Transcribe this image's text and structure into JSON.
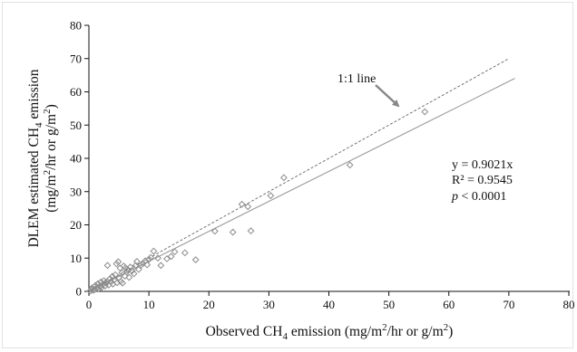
{
  "chart_data": {
    "type": "scatter",
    "xlabel": "Observed CH4 emission (mg/m2/hr or g/m2)",
    "ylabel": "DLEM estimated CH4 emission (mg/m2/hr or g/m2)",
    "xlim": [
      0,
      80
    ],
    "ylim": [
      0,
      80
    ],
    "x_ticks": [
      0,
      10,
      20,
      30,
      40,
      50,
      60,
      70,
      80
    ],
    "y_ticks": [
      0,
      10,
      20,
      30,
      40,
      50,
      60,
      70,
      80
    ],
    "grid": false,
    "marker": "diamond-open",
    "series": [
      {
        "points": [
          [
            0.2,
            0.1
          ],
          [
            0.4,
            0.5
          ],
          [
            0.5,
            1.0
          ],
          [
            0.7,
            0.3
          ],
          [
            0.9,
            1.4
          ],
          [
            1.0,
            0.6
          ],
          [
            1.1,
            1.8
          ],
          [
            1.3,
            1.0
          ],
          [
            1.5,
            2.3
          ],
          [
            1.6,
            0.8
          ],
          [
            1.8,
            1.5
          ],
          [
            2.0,
            2.8
          ],
          [
            2.1,
            1.2
          ],
          [
            2.3,
            2.0
          ],
          [
            2.5,
            3.2
          ],
          [
            2.7,
            1.6
          ],
          [
            2.9,
            2.5
          ],
          [
            3.0,
            3.0
          ],
          [
            3.1,
            7.8
          ],
          [
            3.3,
            1.9
          ],
          [
            3.5,
            3.8
          ],
          [
            3.7,
            2.9
          ],
          [
            3.9,
            4.5
          ],
          [
            4.0,
            2.2
          ],
          [
            4.2,
            3.4
          ],
          [
            4.4,
            5.0
          ],
          [
            4.6,
            8.3
          ],
          [
            4.7,
            2.6
          ],
          [
            4.9,
            8.9
          ],
          [
            5.0,
            4.1
          ],
          [
            5.2,
            7.0
          ],
          [
            5.3,
            3.0
          ],
          [
            5.5,
            5.6
          ],
          [
            5.6,
            2.5
          ],
          [
            5.8,
            7.6
          ],
          [
            6.0,
            4.6
          ],
          [
            6.1,
            7.1
          ],
          [
            6.3,
            5.8
          ],
          [
            6.5,
            6.5
          ],
          [
            6.7,
            4.2
          ],
          [
            6.9,
            7.3
          ],
          [
            7.2,
            6.2
          ],
          [
            7.5,
            5.3
          ],
          [
            7.8,
            7.8
          ],
          [
            8.0,
            9.0
          ],
          [
            8.3,
            6.6
          ],
          [
            8.7,
            7.9
          ],
          [
            9.0,
            8.4
          ],
          [
            9.4,
            9.2
          ],
          [
            9.7,
            8.0
          ],
          [
            10.0,
            9.6
          ],
          [
            10.3,
            10.2
          ],
          [
            10.8,
            12.1
          ],
          [
            11.5,
            10.0
          ],
          [
            12.0,
            7.8
          ],
          [
            13.0,
            9.8
          ],
          [
            13.7,
            10.5
          ],
          [
            14.3,
            11.9
          ],
          [
            16.0,
            11.6
          ],
          [
            17.8,
            9.5
          ],
          [
            21.0,
            18.1
          ],
          [
            24.0,
            17.8
          ],
          [
            25.5,
            26.2
          ],
          [
            26.5,
            25.5
          ],
          [
            27.0,
            18.2
          ],
          [
            30.3,
            28.8
          ],
          [
            32.5,
            34.2
          ],
          [
            43.5,
            38.0
          ],
          [
            56.0,
            54.0
          ]
        ]
      }
    ],
    "lines": [
      {
        "label": "1:1 line",
        "style": "dashed",
        "slope": 1.0,
        "x_range": [
          0,
          70
        ]
      },
      {
        "label": "fit",
        "style": "solid",
        "slope": 0.9021,
        "x_range": [
          0,
          71
        ]
      }
    ],
    "annotations": {
      "one_to_one": "1:1 line",
      "equation": "y = 0.9021x",
      "r_squared": "R² = 0.9545",
      "p_value": "< 0.0001"
    }
  }
}
